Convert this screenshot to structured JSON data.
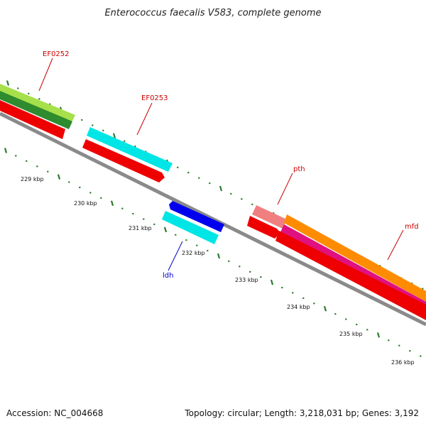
{
  "title": "Enterococcus faecalis V583, complete genome",
  "footer": {
    "accession": "Accession: NC_004668",
    "summary": "Topology: circular; Length: 3,218,031 bp; Genes: 3,192"
  },
  "colors": {
    "backbone": "#8a8a8a",
    "forward_label": "#cc0000",
    "reverse_label": "#0000cc",
    "ticks": "#2a7a2a"
  },
  "genes": [
    {
      "name": "EF0252",
      "label": "EF0252",
      "color": "forward"
    },
    {
      "name": "EF0253",
      "label": "EF0253",
      "color": "forward"
    },
    {
      "name": "pth",
      "label": "pth",
      "color": "forward"
    },
    {
      "name": "mfd",
      "label": "mfd",
      "color": "forward"
    },
    {
      "name": "ldh",
      "label": "ldh",
      "color": "reverse"
    }
  ],
  "ticks": [
    {
      "label": "229 kbp"
    },
    {
      "label": "230 kbp"
    },
    {
      "label": "231 kbp"
    },
    {
      "label": "232 kbp"
    },
    {
      "label": "233 kbp"
    },
    {
      "label": "234 kbp"
    },
    {
      "label": "235 kbp"
    },
    {
      "label": "236 kbp"
    }
  ]
}
